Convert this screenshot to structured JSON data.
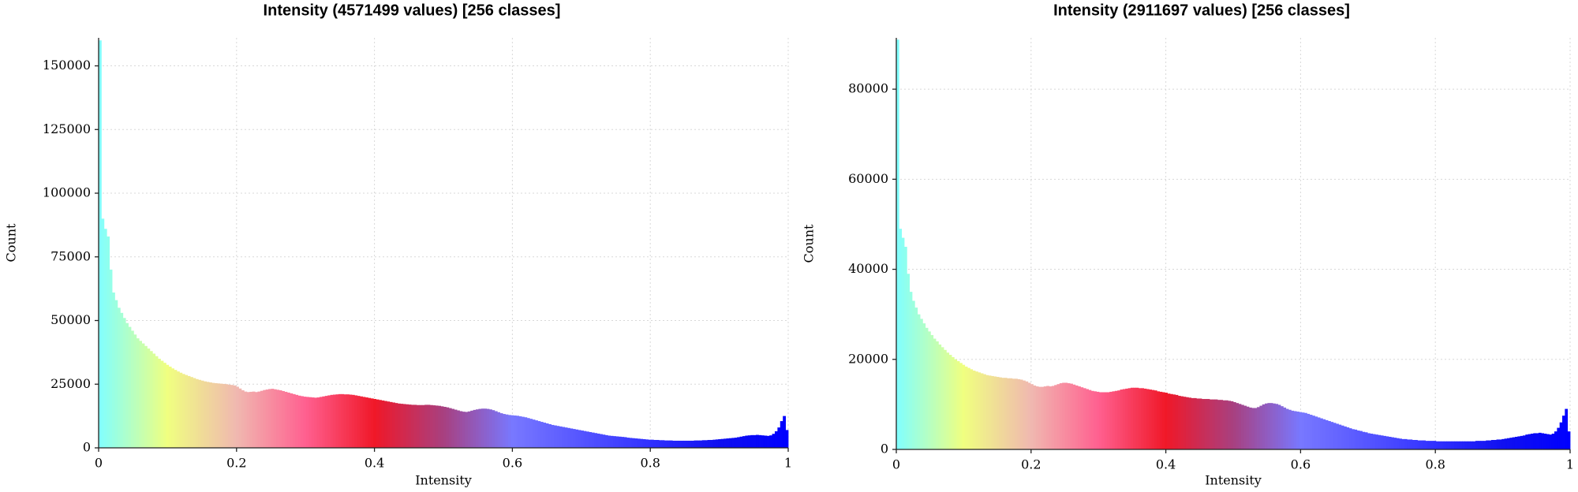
{
  "chart_data": [
    {
      "type": "histogram",
      "title": "Intensity (4571499 values)  [256 classes]",
      "x_label": "Intensity",
      "y_label": "Count",
      "bins": [
        0,
        0.0039,
        0.0078,
        0.0117,
        0.0156,
        0.0195,
        0.0234,
        0.0273,
        0.0313,
        0.0352,
        0.0391,
        0.043,
        0.0469,
        0.0508,
        0.0547,
        0.0586,
        0.0625,
        0.0664,
        0.0703,
        0.0742,
        0.0781,
        0.082,
        0.0859,
        0.0898,
        0.0938,
        0.0977,
        0.1016,
        0.1055,
        0.1094,
        0.1133,
        0.1172,
        0.1211,
        0.125,
        0.1289,
        0.1328,
        0.1367,
        0.1406,
        0.1445,
        0.1484,
        0.1523,
        0.1563,
        0.1602,
        0.1641,
        0.168,
        0.1719,
        0.1758,
        0.1797,
        0.1836,
        0.1875,
        0.1914,
        0.1953,
        0.1992,
        0.2031,
        0.207,
        0.2109,
        0.2148,
        0.2188,
        0.2227,
        0.2266,
        0.2305,
        0.2344,
        0.2383,
        0.2422,
        0.2461,
        0.25,
        0.2539,
        0.2578,
        0.2617,
        0.2656,
        0.2695,
        0.2734,
        0.2773,
        0.2813,
        0.2852,
        0.2891,
        0.293,
        0.2969,
        0.3008,
        0.3047,
        0.3086,
        0.3125,
        0.3164,
        0.3203,
        0.3242,
        0.3281,
        0.332,
        0.3359,
        0.3398,
        0.3438,
        0.3477,
        0.3516,
        0.3555,
        0.3594,
        0.3633,
        0.3672,
        0.3711,
        0.375,
        0.3789,
        0.3828,
        0.3867,
        0.3906,
        0.3945,
        0.3984,
        0.4023,
        0.4063,
        0.4102,
        0.4141,
        0.418,
        0.4219,
        0.4258,
        0.4297,
        0.4336,
        0.4375,
        0.4414,
        0.4453,
        0.4492,
        0.4531,
        0.457,
        0.4609,
        0.4648,
        0.4688,
        0.4727,
        0.4766,
        0.4805,
        0.4844,
        0.4883,
        0.4922,
        0.4961,
        0.5,
        0.5039,
        0.5078,
        0.5117,
        0.5156,
        0.5195,
        0.5234,
        0.5273,
        0.5313,
        0.5352,
        0.5391,
        0.543,
        0.5469,
        0.5508,
        0.5547,
        0.5586,
        0.5625,
        0.5664,
        0.5703,
        0.5742,
        0.5781,
        0.582,
        0.5859,
        0.5898,
        0.5938,
        0.5977,
        0.6016,
        0.6055,
        0.6094,
        0.6133,
        0.6172,
        0.6211,
        0.625,
        0.6289,
        0.6328,
        0.6367,
        0.6406,
        0.6445,
        0.6484,
        0.6523,
        0.6563,
        0.6602,
        0.6641,
        0.668,
        0.6719,
        0.6758,
        0.6797,
        0.6836,
        0.6875,
        0.6914,
        0.6953,
        0.6992,
        0.7031,
        0.707,
        0.7109,
        0.7148,
        0.7188,
        0.7227,
        0.7266,
        0.7305,
        0.7344,
        0.7383,
        0.7422,
        0.7461,
        0.75,
        0.7539,
        0.7578,
        0.7617,
        0.7656,
        0.7695,
        0.7734,
        0.7773,
        0.7813,
        0.7852,
        0.7891,
        0.793,
        0.7969,
        0.8008,
        0.8047,
        0.8086,
        0.8125,
        0.8164,
        0.8203,
        0.8242,
        0.8281,
        0.832,
        0.8359,
        0.8398,
        0.8438,
        0.8477,
        0.8516,
        0.8555,
        0.8594,
        0.8633,
        0.8672,
        0.8711,
        0.875,
        0.8789,
        0.8828,
        0.8867,
        0.8906,
        0.8945,
        0.8984,
        0.9023,
        0.9063,
        0.9102,
        0.9141,
        0.918,
        0.9219,
        0.9258,
        0.9297,
        0.9336,
        0.9375,
        0.9414,
        0.9453,
        0.9492,
        0.9531,
        0.957,
        0.9609,
        0.9648,
        0.9688,
        0.9727,
        0.9766,
        0.9805,
        0.9844,
        0.9883,
        0.9922,
        0.9961,
        1
      ],
      "values": [
        160000,
        90000,
        86000,
        83000,
        70000,
        61000,
        58000,
        55000,
        53000,
        51000,
        49000,
        47500,
        46000,
        44500,
        43000,
        42000,
        41000,
        40000,
        39000,
        38000,
        37000,
        36000,
        35000,
        34200,
        33400,
        32600,
        31900,
        31200,
        30600,
        30000,
        29500,
        29000,
        28600,
        28200,
        27800,
        27400,
        27000,
        26700,
        26400,
        26100,
        25900,
        25700,
        25500,
        25400,
        25300,
        25200,
        25100,
        25000,
        24800,
        24700,
        24500,
        24000,
        23300,
        22600,
        22100,
        21900,
        22000,
        22100,
        21900,
        22100,
        22400,
        22700,
        22900,
        23100,
        23200,
        23000,
        22800,
        22600,
        22300,
        22000,
        21700,
        21400,
        21100,
        20800,
        20500,
        20300,
        20100,
        20000,
        19900,
        19800,
        19700,
        19800,
        20000,
        20200,
        20400,
        20600,
        20800,
        20900,
        21000,
        21100,
        21100,
        21000,
        21000,
        20900,
        20800,
        20600,
        20400,
        20200,
        20000,
        19800,
        19600,
        19400,
        19200,
        19000,
        18800,
        18600,
        18400,
        18200,
        18000,
        17800,
        17600,
        17400,
        17300,
        17200,
        17100,
        17000,
        16900,
        16900,
        16800,
        16800,
        16800,
        16900,
        16900,
        16800,
        16700,
        16600,
        16500,
        16300,
        16100,
        15900,
        15600,
        15300,
        15000,
        14700,
        14400,
        14200,
        14100,
        14300,
        14600,
        14900,
        15100,
        15300,
        15400,
        15400,
        15300,
        15100,
        14800,
        14400,
        14000,
        13600,
        13300,
        13100,
        12900,
        12800,
        12700,
        12600,
        12400,
        12200,
        12000,
        11700,
        11400,
        11100,
        10800,
        10500,
        10200,
        9900,
        9600,
        9300,
        9000,
        8800,
        8600,
        8400,
        8200,
        8000,
        7800,
        7600,
        7400,
        7200,
        7000,
        6800,
        6600,
        6400,
        6200,
        6000,
        5800,
        5600,
        5400,
        5200,
        5000,
        4800,
        4700,
        4600,
        4500,
        4400,
        4300,
        4200,
        4000,
        3900,
        3800,
        3700,
        3600,
        3500,
        3400,
        3300,
        3200,
        3200,
        3100,
        3100,
        3000,
        3000,
        2900,
        2900,
        2900,
        2800,
        2800,
        2800,
        2800,
        2800,
        2800,
        2800,
        2800,
        2900,
        2900,
        2900,
        3000,
        3000,
        3100,
        3100,
        3200,
        3300,
        3400,
        3500,
        3600,
        3700,
        3800,
        3900,
        4000,
        4200,
        4400,
        4600,
        4800,
        4900,
        5000,
        5000,
        5100,
        5000,
        4900,
        4800,
        4700,
        4900,
        5500,
        6500,
        8000,
        10500,
        12500,
        7000
      ],
      "colormap": [
        "#80ffff",
        "#f0ff80",
        "#f0b8b0",
        "#ff6090",
        "#f01828",
        "#a84080",
        "#7878ff",
        "#5555ff",
        "#3030ff",
        "#1010f0",
        "#0000ff"
      ],
      "xlim": [
        0,
        1
      ],
      "xticks": [
        0,
        0.2,
        0.4,
        0.6,
        0.8,
        1
      ],
      "ylim": [
        0,
        161000
      ],
      "yticks": [
        0,
        25000,
        50000,
        75000,
        100000,
        125000,
        150000
      ],
      "grid": true
    },
    {
      "type": "histogram",
      "title": "Intensity (2911697 values)  [256 classes]",
      "x_label": "Intensity",
      "y_label": "Count",
      "bins": [
        0,
        0.0039,
        0.0078,
        0.0117,
        0.0156,
        0.0195,
        0.0234,
        0.0273,
        0.0313,
        0.0352,
        0.0391,
        0.043,
        0.0469,
        0.0508,
        0.0547,
        0.0586,
        0.0625,
        0.0664,
        0.0703,
        0.0742,
        0.0781,
        0.082,
        0.0859,
        0.0898,
        0.0938,
        0.0977,
        0.1016,
        0.1055,
        0.1094,
        0.1133,
        0.1172,
        0.1211,
        0.125,
        0.1289,
        0.1328,
        0.1367,
        0.1406,
        0.1445,
        0.1484,
        0.1523,
        0.1563,
        0.1602,
        0.1641,
        0.168,
        0.1719,
        0.1758,
        0.1797,
        0.1836,
        0.1875,
        0.1914,
        0.1953,
        0.1992,
        0.2031,
        0.207,
        0.2109,
        0.2148,
        0.2188,
        0.2227,
        0.2266,
        0.2305,
        0.2344,
        0.2383,
        0.2422,
        0.2461,
        0.25,
        0.2539,
        0.2578,
        0.2617,
        0.2656,
        0.2695,
        0.2734,
        0.2773,
        0.2813,
        0.2852,
        0.2891,
        0.293,
        0.2969,
        0.3008,
        0.3047,
        0.3086,
        0.3125,
        0.3164,
        0.3203,
        0.3242,
        0.3281,
        0.332,
        0.3359,
        0.3398,
        0.3438,
        0.3477,
        0.3516,
        0.3555,
        0.3594,
        0.3633,
        0.3672,
        0.3711,
        0.375,
        0.3789,
        0.3828,
        0.3867,
        0.3906,
        0.3945,
        0.3984,
        0.4023,
        0.4063,
        0.4102,
        0.4141,
        0.418,
        0.4219,
        0.4258,
        0.4297,
        0.4336,
        0.4375,
        0.4414,
        0.4453,
        0.4492,
        0.4531,
        0.457,
        0.4609,
        0.4648,
        0.4688,
        0.4727,
        0.4766,
        0.4805,
        0.4844,
        0.4883,
        0.4922,
        0.4961,
        0.5,
        0.5039,
        0.5078,
        0.5117,
        0.5156,
        0.5195,
        0.5234,
        0.5273,
        0.5313,
        0.5352,
        0.5391,
        0.543,
        0.5469,
        0.5508,
        0.5547,
        0.5586,
        0.5625,
        0.5664,
        0.5703,
        0.5742,
        0.5781,
        0.582,
        0.5859,
        0.5898,
        0.5938,
        0.5977,
        0.6016,
        0.6055,
        0.6094,
        0.6133,
        0.6172,
        0.6211,
        0.625,
        0.6289,
        0.6328,
        0.6367,
        0.6406,
        0.6445,
        0.6484,
        0.6523,
        0.6563,
        0.6602,
        0.6641,
        0.668,
        0.6719,
        0.6758,
        0.6797,
        0.6836,
        0.6875,
        0.6914,
        0.6953,
        0.6992,
        0.7031,
        0.707,
        0.7109,
        0.7148,
        0.7188,
        0.7227,
        0.7266,
        0.7305,
        0.7344,
        0.7383,
        0.7422,
        0.7461,
        0.75,
        0.7539,
        0.7578,
        0.7617,
        0.7656,
        0.7695,
        0.7734,
        0.7773,
        0.7813,
        0.7852,
        0.7891,
        0.793,
        0.7969,
        0.8008,
        0.8047,
        0.8086,
        0.8125,
        0.8164,
        0.8203,
        0.8242,
        0.8281,
        0.832,
        0.8359,
        0.8398,
        0.8438,
        0.8477,
        0.8516,
        0.8555,
        0.8594,
        0.8633,
        0.8672,
        0.8711,
        0.875,
        0.8789,
        0.8828,
        0.8867,
        0.8906,
        0.8945,
        0.8984,
        0.9023,
        0.9063,
        0.9102,
        0.9141,
        0.918,
        0.9219,
        0.9258,
        0.9297,
        0.9336,
        0.9375,
        0.9414,
        0.9453,
        0.9492,
        0.9531,
        0.957,
        0.9609,
        0.9648,
        0.9688,
        0.9727,
        0.9766,
        0.9805,
        0.9844,
        0.9883,
        0.9922,
        0.9961,
        1
      ],
      "values": [
        91000,
        49000,
        47000,
        45000,
        39000,
        35000,
        33000,
        31500,
        30000,
        29000,
        28000,
        27000,
        26200,
        25400,
        24600,
        24000,
        23300,
        22700,
        22100,
        21500,
        21000,
        20500,
        20000,
        19600,
        19200,
        18800,
        18400,
        18100,
        17800,
        17500,
        17300,
        17100,
        16900,
        16700,
        16500,
        16400,
        16300,
        16200,
        16100,
        16000,
        15900,
        15900,
        15800,
        15800,
        15700,
        15700,
        15600,
        15500,
        15300,
        15100,
        14800,
        14500,
        14200,
        14000,
        13900,
        13900,
        14000,
        14100,
        14000,
        14100,
        14300,
        14500,
        14700,
        14800,
        14800,
        14700,
        14600,
        14400,
        14200,
        14000,
        13800,
        13600,
        13400,
        13200,
        13000,
        12900,
        12800,
        12700,
        12700,
        12700,
        12700,
        12800,
        12900,
        13000,
        13100,
        13300,
        13400,
        13500,
        13600,
        13700,
        13700,
        13700,
        13600,
        13600,
        13500,
        13400,
        13300,
        13200,
        13100,
        12900,
        12800,
        12700,
        12600,
        12400,
        12300,
        12200,
        12100,
        11900,
        11800,
        11700,
        11600,
        11500,
        11400,
        11400,
        11300,
        11300,
        11200,
        11200,
        11200,
        11100,
        11100,
        11100,
        11000,
        11000,
        10900,
        10900,
        10800,
        10700,
        10500,
        10300,
        10100,
        9900,
        9700,
        9500,
        9300,
        9200,
        9200,
        9400,
        9700,
        10000,
        10200,
        10300,
        10300,
        10200,
        10100,
        9900,
        9600,
        9300,
        9000,
        8800,
        8600,
        8500,
        8400,
        8300,
        8200,
        8100,
        7900,
        7700,
        7500,
        7300,
        7100,
        6900,
        6700,
        6500,
        6300,
        6100,
        5900,
        5700,
        5500,
        5300,
        5100,
        4900,
        4700,
        4500,
        4400,
        4200,
        4100,
        3900,
        3800,
        3600,
        3500,
        3400,
        3300,
        3200,
        3100,
        3000,
        2900,
        2800,
        2700,
        2600,
        2500,
        2400,
        2300,
        2300,
        2200,
        2200,
        2100,
        2100,
        2000,
        2000,
        2000,
        1900,
        1900,
        1900,
        1900,
        1800,
        1800,
        1800,
        1800,
        1800,
        1800,
        1800,
        1800,
        1800,
        1800,
        1800,
        1800,
        1800,
        1800,
        1800,
        1900,
        1900,
        1900,
        1900,
        2000,
        2000,
        2100,
        2100,
        2200,
        2200,
        2300,
        2400,
        2500,
        2600,
        2700,
        2800,
        2900,
        3000,
        3100,
        3300,
        3400,
        3500,
        3600,
        3600,
        3700,
        3600,
        3500,
        3400,
        3300,
        3500,
        4000,
        4800,
        6000,
        7500,
        9000,
        4000
      ],
      "colormap": [
        "#80ffff",
        "#f0ff80",
        "#f0b8b0",
        "#ff6090",
        "#f01828",
        "#a84080",
        "#7878ff",
        "#5555ff",
        "#3030ff",
        "#1010f0",
        "#0000ff"
      ],
      "xlim": [
        0,
        1
      ],
      "xticks": [
        0,
        0.2,
        0.4,
        0.6,
        0.8,
        1
      ],
      "ylim": [
        0,
        91400
      ],
      "yticks": [
        0,
        20000,
        40000,
        60000,
        80000
      ],
      "grid": true
    }
  ]
}
